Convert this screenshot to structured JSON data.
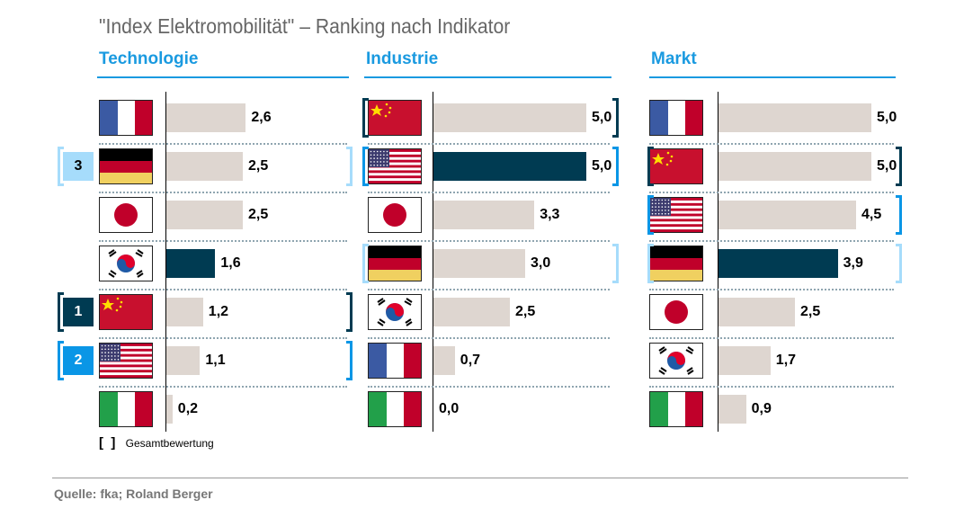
{
  "title": "\"Index Elektromobilität\" – Ranking nach Indikator",
  "legend_label": "Gesamtbewertung",
  "source": "Quelle: fka; Roland Berger",
  "colors": {
    "accent": "#1a9ae0",
    "bar": "#ded6d0",
    "highlight": "#003b52",
    "rank1": "#003b52",
    "rank2": "#0a96e6",
    "rank3": "#a6dcfb"
  },
  "chart_data": [
    {
      "type": "bar",
      "orientation": "horizontal",
      "title": "Technologie",
      "categories": [
        "Frankreich",
        "Deutschland",
        "Japan",
        "Südkorea",
        "China",
        "USA",
        "Italien"
      ],
      "flags": [
        "fr",
        "de",
        "jp",
        "kr",
        "cn",
        "us",
        "it"
      ],
      "values": [
        2.6,
        2.5,
        2.5,
        1.6,
        1.2,
        1.1,
        0.2
      ],
      "labels": [
        "2,6",
        "2,5",
        "2,5",
        "1,6",
        "1,2",
        "1,1",
        "0,2"
      ],
      "highlight": "Südkorea",
      "overall_rank": {
        "China": 1,
        "USA": 2,
        "Deutschland": 3
      },
      "xlim": [
        0,
        5
      ]
    },
    {
      "type": "bar",
      "orientation": "horizontal",
      "title": "Industrie",
      "categories": [
        "China",
        "USA",
        "Japan",
        "Deutschland",
        "Südkorea",
        "Frankreich",
        "Italien"
      ],
      "flags": [
        "cn",
        "us",
        "jp",
        "de",
        "kr",
        "fr",
        "it"
      ],
      "values": [
        5.0,
        5.0,
        3.3,
        3.0,
        2.5,
        0.7,
        0.0
      ],
      "labels": [
        "5,0",
        "5,0",
        "3,3",
        "3,0",
        "2,5",
        "0,7",
        "0,0"
      ],
      "highlight": "USA",
      "overall_rank": {
        "China": 1,
        "USA": 2,
        "Deutschland": 3
      },
      "xlim": [
        0,
        5
      ]
    },
    {
      "type": "bar",
      "orientation": "horizontal",
      "title": "Markt",
      "categories": [
        "Frankreich",
        "China",
        "USA",
        "Deutschland",
        "Japan",
        "Südkorea",
        "Italien"
      ],
      "flags": [
        "fr",
        "cn",
        "us",
        "de",
        "jp",
        "kr",
        "it"
      ],
      "values": [
        5.0,
        5.0,
        4.5,
        3.9,
        2.5,
        1.7,
        0.9
      ],
      "labels": [
        "5,0",
        "5,0",
        "4,5",
        "3,9",
        "2,5",
        "1,7",
        "0,9"
      ],
      "highlight": "Deutschland",
      "overall_rank": {
        "China": 1,
        "USA": 2,
        "Deutschland": 3
      },
      "xlim": [
        0,
        5
      ]
    }
  ]
}
